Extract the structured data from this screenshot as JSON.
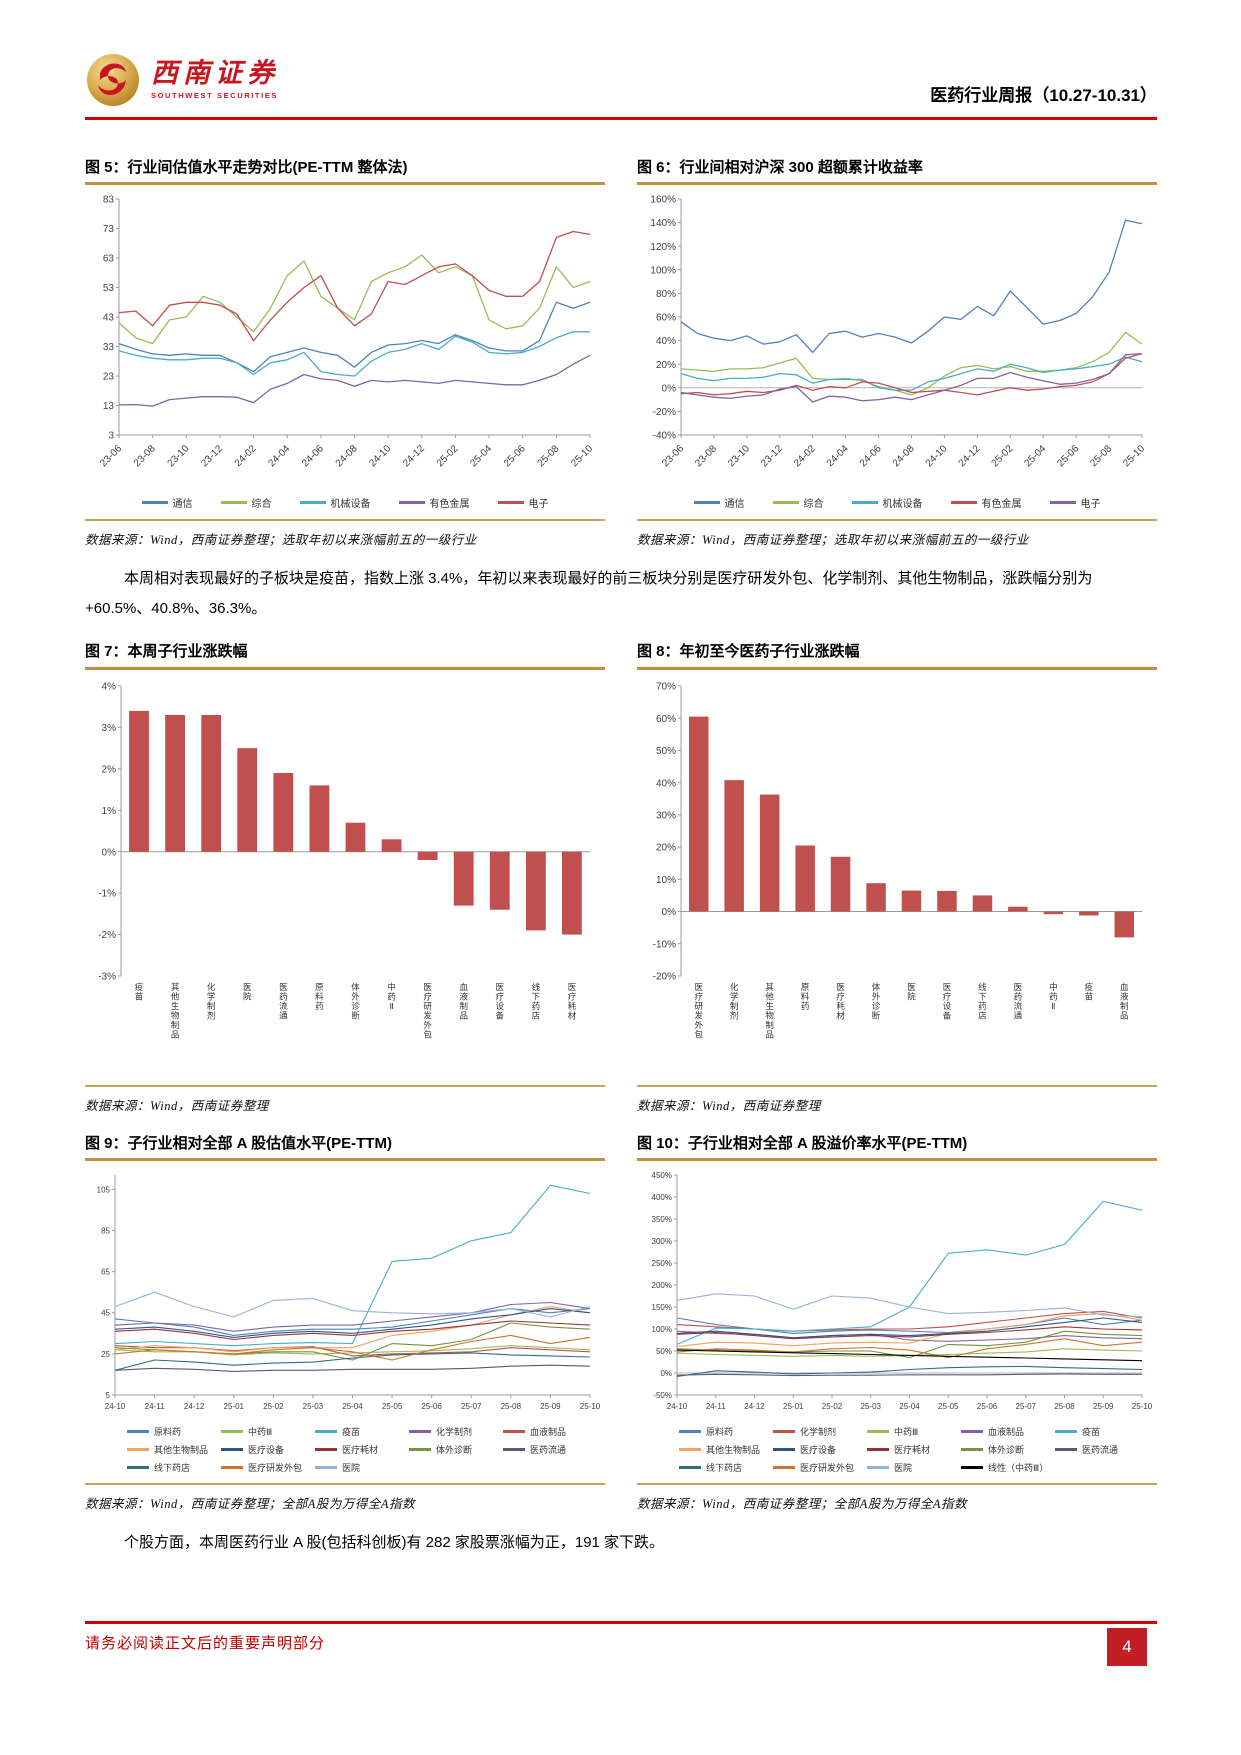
{
  "header": {
    "brand_cn": "西南证券",
    "brand_en": "SOUTHWEST SECURITIES",
    "report_title": "医药行业周报（10.27-10.31）"
  },
  "paragraphs": {
    "p1": "本周相对表现最好的子板块是疫苗，指数上涨 3.4%，年初以来表现最好的前三板块分别是医疗研发外包、化学制剂、其他生物制品，涨跌幅分别为+60.5%、40.8%、36.3%。",
    "p2": "个股方面，本周医药行业 A 股(包括科创板)有 282 家股票涨幅为正，191 家下跌。"
  },
  "footer": {
    "disclaimer": "请务必阅读正文后的重要声明部分",
    "page_number": "4"
  },
  "chart_data": [
    {
      "id": "fig5",
      "type": "line",
      "title": "图 5：行业间估值水平走势对比(PE-TTM 整体法)",
      "caption": "数据来源：Wind，西南证券整理；选取年初以来涨幅前五的一级行业",
      "x_tick_labels": [
        "23-06",
        "23-08",
        "23-10",
        "23-12",
        "24-02",
        "24-04",
        "24-06",
        "24-08",
        "24-10",
        "24-12",
        "25-02",
        "25-04",
        "25-06",
        "25-08",
        "25-10"
      ],
      "x_count": 29,
      "label_every": 2,
      "ylim": [
        3,
        83
      ],
      "yticks": [
        3,
        13,
        23,
        33,
        43,
        53,
        63,
        73,
        83
      ],
      "y_suffix": "",
      "series": [
        {
          "name": "通信",
          "color": "#4F81BD",
          "values": [
            34,
            32,
            30.5,
            30,
            30.5,
            30,
            30,
            27.5,
            24.5,
            29.5,
            31,
            32.5,
            31,
            30,
            26,
            31,
            33.5,
            34,
            35,
            34,
            37,
            35,
            32.5,
            31.5,
            31.5,
            35,
            48,
            46,
            48
          ]
        },
        {
          "name": "综合",
          "color": "#9BBB59",
          "values": [
            41,
            36,
            34,
            42,
            43,
            50,
            48,
            43,
            38,
            46,
            57,
            62,
            50,
            46,
            42,
            55,
            58,
            60,
            64,
            58,
            60,
            57,
            42,
            39,
            40,
            46,
            60,
            53,
            55
          ]
        },
        {
          "name": "机械设备",
          "color": "#4BACC6",
          "values": [
            31.5,
            30,
            29,
            28.5,
            28.5,
            29,
            29,
            27.5,
            23.5,
            27.5,
            28.5,
            31,
            24.5,
            23.5,
            23,
            28,
            31,
            32,
            34,
            32,
            36.5,
            34.5,
            31,
            30.5,
            31,
            33,
            36,
            38,
            38
          ]
        },
        {
          "name": "有色金属",
          "color": "#8064A2",
          "values": [
            13.2,
            13.3,
            12.8,
            15,
            15.5,
            16,
            16,
            15.8,
            14,
            18.5,
            20.5,
            23.5,
            22,
            21.5,
            19.5,
            21.5,
            21,
            21.5,
            21,
            20.5,
            21.5,
            21,
            20.5,
            20,
            20,
            21.5,
            23.5,
            27,
            30
          ]
        },
        {
          "name": "电子",
          "color": "#C0504D",
          "values": [
            44.5,
            45,
            40,
            47,
            48,
            48,
            47,
            44,
            35,
            42,
            48,
            53,
            57,
            46,
            40,
            44,
            55,
            54,
            57,
            60,
            61,
            57,
            52,
            50,
            50,
            55,
            70,
            72,
            71
          ]
        }
      ]
    },
    {
      "id": "fig6",
      "type": "line",
      "title": "图 6：行业间相对沪深 300 超额累计收益率",
      "caption": "数据来源：Wind，西南证券整理；选取年初以来涨幅前五的一级行业",
      "x_tick_labels": [
        "23-06",
        "23-08",
        "23-10",
        "23-12",
        "24-02",
        "24-04",
        "24-06",
        "24-08",
        "24-10",
        "24-12",
        "25-02",
        "25-04",
        "25-06",
        "25-08",
        "25-10"
      ],
      "x_count": 29,
      "label_every": 2,
      "ylim": [
        -40,
        160
      ],
      "yticks": [
        -40,
        -20,
        0,
        20,
        40,
        60,
        80,
        100,
        120,
        140,
        160
      ],
      "y_suffix": "%",
      "series": [
        {
          "name": "通信",
          "color": "#4F81BD",
          "values": [
            56,
            46,
            42,
            40,
            44,
            37,
            39,
            45,
            30,
            46,
            48,
            43,
            46,
            43,
            38,
            48,
            60,
            58,
            69,
            61,
            82,
            68,
            54,
            57,
            63,
            77,
            98,
            142,
            139
          ]
        },
        {
          "name": "综合",
          "color": "#9BBB59",
          "values": [
            16,
            15,
            14,
            16,
            16,
            17,
            21,
            25,
            8,
            7,
            8,
            6,
            1,
            -2,
            -6,
            0,
            10,
            17,
            19,
            16,
            18,
            14,
            14,
            15,
            17,
            22,
            30,
            47,
            37
          ]
        },
        {
          "name": "机械设备",
          "color": "#4BACC6",
          "values": [
            12,
            8,
            6,
            8,
            8,
            9,
            12,
            11,
            4,
            7,
            7,
            7,
            0,
            -2,
            -2,
            5,
            8,
            12,
            16,
            14,
            20,
            17,
            13,
            15,
            16,
            18,
            20,
            26,
            22
          ]
        },
        {
          "name": "有色金属",
          "color": "#C0504D",
          "values": [
            -5,
            -4,
            -6,
            -5,
            -3,
            -4,
            -2,
            2,
            -2,
            1,
            0,
            5,
            4,
            0,
            -4,
            -3,
            -2,
            -4,
            -6,
            -3,
            0,
            -2,
            -1,
            1,
            2,
            5,
            12,
            25,
            29
          ]
        },
        {
          "name": "电子",
          "color": "#8064A2",
          "values": [
            -4,
            -6,
            -8,
            -9,
            -7,
            -6,
            -1,
            1,
            -12,
            -7,
            -8,
            -11,
            -10,
            -8,
            -10,
            -6,
            -2,
            2,
            8,
            8,
            13,
            9,
            6,
            3,
            4,
            7,
            12,
            28,
            29
          ]
        }
      ]
    },
    {
      "id": "fig7",
      "type": "bar",
      "title": "图 7：本周子行业涨跌幅",
      "caption": "数据来源：Wind，西南证券整理",
      "categories": [
        "疫苗",
        "其他生物制品",
        "化学制剂",
        "医院",
        "医药流通",
        "原料药",
        "体外诊断",
        "中药Ⅱ",
        "医疗研发外包",
        "血液制品",
        "医疗设备",
        "线下药店",
        "医疗耗材"
      ],
      "values": [
        3.4,
        3.3,
        3.3,
        2.5,
        1.9,
        1.6,
        0.7,
        0.3,
        -0.2,
        -1.3,
        -1.4,
        -1.9,
        -2.0
      ],
      "bar_color": "#C0504D",
      "ylim": [
        -3,
        4
      ],
      "yticks": [
        -3,
        -2,
        -1,
        0,
        1,
        2,
        3,
        4
      ],
      "y_suffix": "%"
    },
    {
      "id": "fig8",
      "type": "bar",
      "title": "图 8：年初至今医药子行业涨跌幅",
      "caption": "数据来源：Wind，西南证券整理",
      "categories": [
        "医疗研发外包",
        "化学制剂",
        "其他生物制品",
        "原料药",
        "医疗耗材",
        "体外诊断",
        "医院",
        "医疗设备",
        "线下药店",
        "医药流通",
        "中药Ⅱ",
        "疫苗",
        "血液制品"
      ],
      "values": [
        60.5,
        40.8,
        36.3,
        20.5,
        17,
        8.8,
        6.5,
        6.4,
        5,
        1.5,
        -0.8,
        -1.2,
        -8
      ],
      "bar_color": "#C0504D",
      "ylim": [
        -20,
        70
      ],
      "yticks": [
        -20,
        -10,
        0,
        10,
        20,
        30,
        40,
        50,
        60,
        70
      ],
      "y_suffix": "%"
    },
    {
      "id": "fig9",
      "type": "line",
      "title": "图 9：子行业相对全部 A 股估值水平(PE-TTM)",
      "caption": "数据来源：Wind，西南证券整理；全部A股为万得全A指数",
      "x_tick_labels": [
        "24-10",
        "24-11",
        "24-12",
        "25-01",
        "25-02",
        "25-03",
        "25-04",
        "25-05",
        "25-06",
        "25-07",
        "25-08",
        "25-09",
        "25-10"
      ],
      "x_count": 13,
      "label_every": 1,
      "ylim": [
        5,
        112
      ],
      "yticks": [
        5,
        25,
        45,
        65,
        85,
        105
      ],
      "y_suffix": "",
      "series": [
        {
          "name": "原料药",
          "color": "#4F81BD",
          "values": [
            42,
            40,
            38,
            34,
            36,
            37,
            37,
            38,
            41,
            44,
            47,
            45,
            47
          ]
        },
        {
          "name": "中药Ⅲ",
          "color": "#9BBB59",
          "values": [
            27,
            26,
            26,
            24.5,
            25.5,
            25,
            25.5,
            26,
            26.5,
            27.5,
            29,
            28,
            27
          ]
        },
        {
          "name": "疫苗",
          "color": "#4BACC6",
          "values": [
            30,
            31,
            30,
            29,
            30,
            30.5,
            30,
            70,
            71.5,
            80,
            84,
            107,
            103
          ]
        },
        {
          "name": "化学制剂",
          "color": "#8064A2",
          "values": [
            39,
            40,
            39,
            36,
            38,
            39,
            39,
            41,
            43,
            45,
            49,
            50,
            47
          ]
        },
        {
          "name": "血液制品",
          "color": "#C0504D",
          "values": [
            29,
            28,
            28,
            26.5,
            28,
            28.5,
            24,
            25,
            25.5,
            26,
            28,
            27,
            26
          ]
        },
        {
          "name": "其他生物制品",
          "color": "#F5A25D",
          "values": [
            27,
            29,
            28,
            26,
            28,
            28,
            28,
            34,
            36,
            39,
            44,
            48,
            45
          ]
        },
        {
          "name": "医疗设备",
          "color": "#2E5587",
          "values": [
            37,
            38,
            36,
            33,
            35,
            36,
            35,
            37,
            39,
            42,
            44,
            47,
            45
          ]
        },
        {
          "name": "医疗耗材",
          "color": "#943634",
          "values": [
            36,
            37,
            35,
            32,
            34,
            35,
            34,
            36,
            37,
            39,
            41,
            40,
            39
          ]
        },
        {
          "name": "体外诊断",
          "color": "#76923C",
          "values": [
            28,
            27,
            26,
            25,
            26,
            26,
            22,
            30,
            29,
            32,
            40,
            38,
            37
          ]
        },
        {
          "name": "医药流通",
          "color": "#5C5873",
          "values": [
            17,
            18,
            17.5,
            16.5,
            17,
            17,
            17.5,
            17.5,
            17.5,
            18,
            19,
            19.5,
            19
          ]
        },
        {
          "name": "线下药店",
          "color": "#2F6D80",
          "values": [
            17,
            22,
            21,
            19.5,
            20.5,
            21,
            23,
            24.5,
            25,
            25.5,
            24.5,
            24,
            23.5
          ]
        },
        {
          "name": "医疗研发外包",
          "color": "#C9772E",
          "values": [
            25,
            27,
            26,
            25,
            27,
            28,
            26,
            22,
            27,
            31,
            34,
            30,
            33
          ]
        },
        {
          "name": "医院",
          "color": "#95B3D7",
          "values": [
            48,
            55,
            48,
            43,
            51,
            52,
            46,
            45,
            44.5,
            45,
            47,
            43,
            48
          ]
        }
      ]
    },
    {
      "id": "fig10",
      "type": "line",
      "title": "图 10：子行业相对全部 A 股溢价率水平(PE-TTM)",
      "caption": "数据来源：Wind，西南证券整理；全部A股为万得全A指数",
      "x_tick_labels": [
        "24-10",
        "24-11",
        "24-12",
        "25-01",
        "25-02",
        "25-03",
        "25-04",
        "25-05",
        "25-06",
        "25-07",
        "25-08",
        "25-09",
        "25-10"
      ],
      "x_count": 13,
      "label_every": 1,
      "ylim": [
        -50,
        450
      ],
      "yticks": [
        -50,
        0,
        50,
        100,
        150,
        200,
        250,
        300,
        350,
        400,
        450
      ],
      "y_suffix": "%",
      "series": [
        {
          "name": "原料药",
          "color": "#4F81BD",
          "values": [
            125,
            110,
            100,
            90,
            95,
            98,
            95,
            92,
            100,
            110,
            125,
            110,
            120
          ]
        },
        {
          "name": "化学制剂",
          "color": "#C0504D",
          "values": [
            110,
            105,
            100,
            95,
            98,
            100,
            100,
            105,
            115,
            125,
            135,
            140,
            125
          ]
        },
        {
          "name": "中药Ⅲ",
          "color": "#9BBB59",
          "values": [
            45,
            42,
            40,
            38,
            40,
            38,
            40,
            42,
            45,
            48,
            55,
            52,
            50
          ]
        },
        {
          "name": "血液制品",
          "color": "#8064A2",
          "values": [
            95,
            90,
            88,
            80,
            85,
            88,
            75,
            72,
            75,
            78,
            85,
            80,
            78
          ]
        },
        {
          "name": "疫苗",
          "color": "#4BACC6",
          "values": [
            65,
            102,
            100,
            95,
            100,
            105,
            150,
            272,
            280,
            268,
            292,
            390,
            370
          ]
        },
        {
          "name": "其他生物制品",
          "color": "#F5A25D",
          "values": [
            60,
            70,
            68,
            62,
            68,
            70,
            68,
            90,
            100,
            110,
            130,
            135,
            120
          ]
        },
        {
          "name": "医疗设备",
          "color": "#2E5587",
          "values": [
            90,
            95,
            88,
            80,
            85,
            88,
            85,
            90,
            95,
            105,
            115,
            125,
            115
          ]
        },
        {
          "name": "医疗耗材",
          "color": "#943634",
          "values": [
            88,
            92,
            85,
            78,
            82,
            85,
            82,
            88,
            92,
            98,
            105,
            100,
            98
          ]
        },
        {
          "name": "体外诊断",
          "color": "#76923C",
          "values": [
            55,
            52,
            50,
            48,
            50,
            50,
            35,
            65,
            62,
            70,
            95,
            88,
            85
          ]
        },
        {
          "name": "医药流通",
          "color": "#5C5873",
          "values": [
            -5,
            -3,
            -4,
            -6,
            -5,
            -5,
            -4,
            -4,
            -4,
            -3,
            -2,
            -3,
            -3
          ]
        },
        {
          "name": "线下药店",
          "color": "#2F6D80",
          "values": [
            -8,
            5,
            2,
            -2,
            0,
            2,
            8,
            12,
            14,
            15,
            12,
            10,
            8
          ]
        },
        {
          "name": "医疗研发外包",
          "color": "#C9772E",
          "values": [
            48,
            55,
            52,
            48,
            55,
            58,
            52,
            35,
            55,
            65,
            78,
            62,
            70
          ]
        },
        {
          "name": "医院",
          "color": "#95B3D7",
          "values": [
            165,
            180,
            175,
            145,
            175,
            170,
            150,
            135,
            138,
            142,
            148,
            132,
            128
          ]
        },
        {
          "name": "线性（中药Ⅲ）",
          "color": "#000000",
          "values": [
            52,
            50,
            48,
            46,
            44,
            42,
            40,
            38,
            36,
            34,
            32,
            30,
            28
          ]
        }
      ]
    }
  ]
}
